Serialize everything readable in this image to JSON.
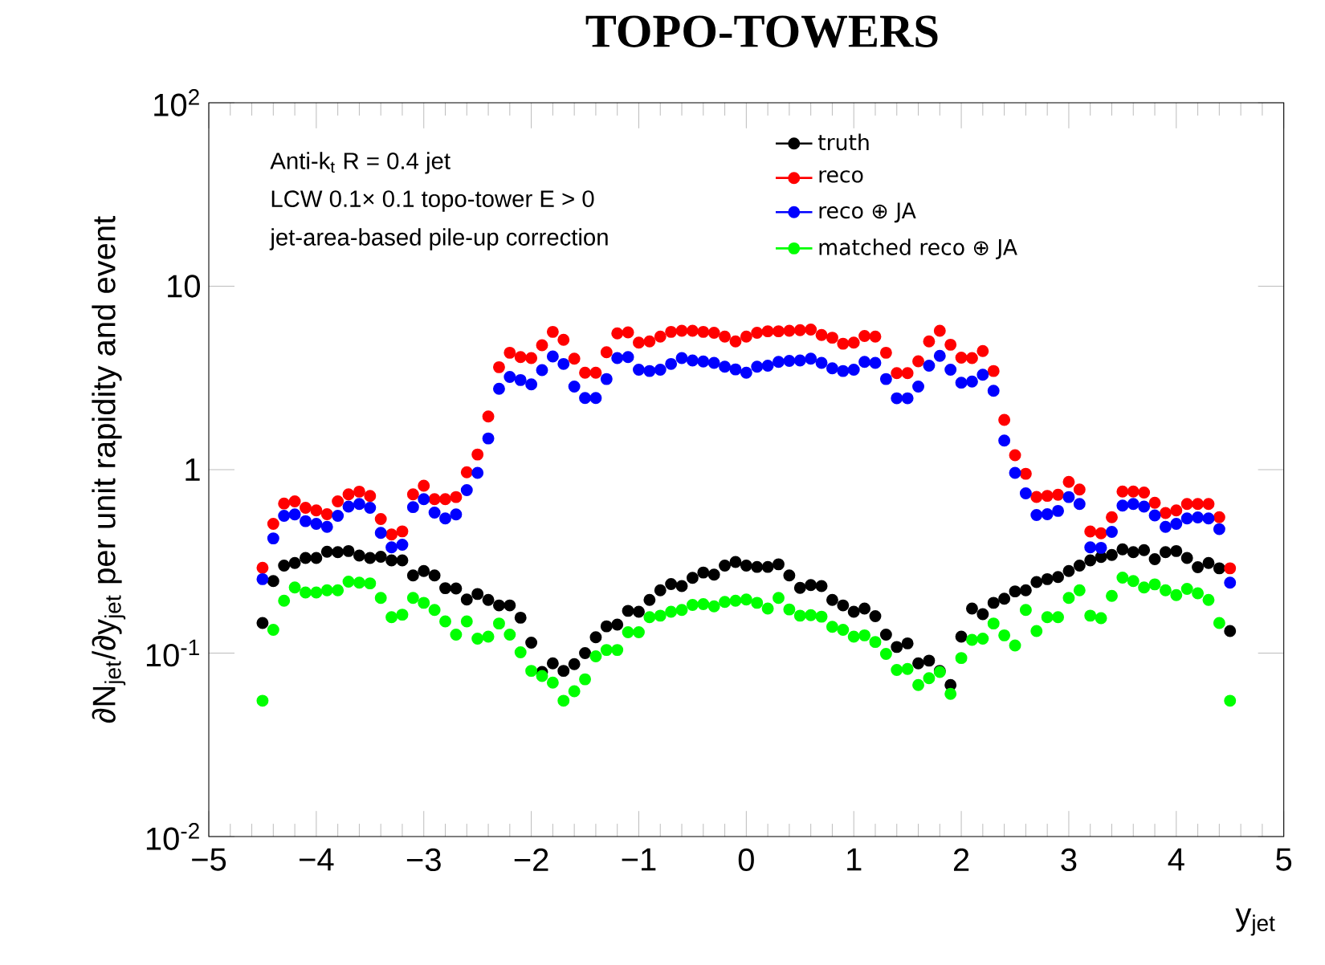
{
  "chart_data": {
    "type": "scatter",
    "title": "TOPO-TOWERS",
    "xlabel": "y$_{jet}$",
    "ylabel": "∂N$_{jet}$/∂y$_{jet}$ per unit rapidity and event",
    "annotations": [
      "Anti-k$_{t}$ R = 0.4 jet",
      "LCW 0.1× 0.1 topo-tower E > 0",
      "jet-area-based pile-up correction"
    ],
    "log": "y",
    "marker": "circle",
    "legend": "top right",
    "xlim": [
      -5,
      5
    ],
    "ylim": [
      0.01,
      100
    ],
    "xticks": [
      {
        "value": -5,
        "label": "−5"
      },
      {
        "value": -4,
        "label": "−4"
      },
      {
        "value": -3,
        "label": "−3"
      },
      {
        "value": -2,
        "label": "−2"
      },
      {
        "value": -1,
        "label": "−1"
      },
      0,
      1,
      2,
      3,
      4,
      5
    ],
    "yticks": [
      {
        "value": 0.01,
        "label": "10$^{-2}$"
      },
      {
        "value": 0.1,
        "label": "10$^{-1}$"
      },
      1,
      10,
      {
        "value": 100,
        "label": "10$^{2}$"
      }
    ],
    "x": [
      -4.5,
      -4.4,
      -4.3,
      -4.2,
      -4.1,
      -4.0,
      -3.9,
      -3.8,
      -3.7,
      -3.6,
      -3.5,
      -3.4,
      -3.3,
      -3.2,
      -3.1,
      -3.0,
      -2.9,
      -2.8,
      -2.7,
      -2.6,
      -2.5,
      -2.4,
      -2.3,
      -2.2,
      -2.1,
      -2.0,
      -1.9,
      -1.8,
      -1.7,
      -1.6,
      -1.5,
      -1.4,
      -1.3,
      -1.2,
      -1.1,
      -1.0,
      -0.9,
      -0.8,
      -0.7,
      -0.6,
      -0.5,
      -0.4,
      -0.3,
      -0.2,
      -0.1,
      0.0,
      0.1,
      0.2,
      0.3,
      0.4,
      0.5,
      0.6,
      0.7,
      0.8,
      0.9,
      1.0,
      1.1,
      1.2,
      1.3,
      1.4,
      1.5,
      1.6,
      1.7,
      1.8,
      1.9,
      2.0,
      2.1,
      2.2,
      2.3,
      2.4,
      2.5,
      2.6,
      2.7,
      2.8,
      2.9,
      3.0,
      3.1,
      3.2,
      3.3,
      3.4,
      3.5,
      3.6,
      3.7,
      3.8,
      3.9,
      4.0,
      4.1,
      4.2,
      4.3,
      4.4,
      4.5
    ],
    "series": [
      {
        "name": "truth",
        "color": "#000000",
        "values": [
          0.146,
          0.247,
          0.3,
          0.31,
          0.33,
          0.33,
          0.357,
          0.355,
          0.36,
          0.34,
          0.33,
          0.335,
          0.32,
          0.32,
          0.265,
          0.28,
          0.265,
          0.226,
          0.225,
          0.196,
          0.21,
          0.195,
          0.182,
          0.182,
          0.156,
          0.114,
          0.079,
          0.088,
          0.08,
          0.087,
          0.1,
          0.122,
          0.14,
          0.143,
          0.17,
          0.168,
          0.195,
          0.22,
          0.238,
          0.232,
          0.257,
          0.275,
          0.268,
          0.3,
          0.314,
          0.3,
          0.295,
          0.295,
          0.305,
          0.265,
          0.227,
          0.235,
          0.232,
          0.195,
          0.182,
          0.168,
          0.175,
          0.159,
          0.126,
          0.108,
          0.113,
          0.088,
          0.091,
          0.08,
          0.067,
          0.123,
          0.175,
          0.163,
          0.188,
          0.198,
          0.217,
          0.22,
          0.244,
          0.253,
          0.26,
          0.28,
          0.3,
          0.32,
          0.334,
          0.343,
          0.368,
          0.355,
          0.364,
          0.325,
          0.355,
          0.36,
          0.33,
          0.294,
          0.31,
          0.29,
          0.132
        ]
      },
      {
        "name": "reco",
        "color": "#ff0000",
        "values": [
          0.292,
          0.507,
          0.654,
          0.672,
          0.62,
          0.6,
          0.572,
          0.672,
          0.734,
          0.759,
          0.719,
          0.538,
          0.443,
          0.461,
          0.734,
          0.817,
          0.69,
          0.69,
          0.709,
          0.967,
          1.21,
          1.95,
          3.62,
          4.34,
          4.11,
          4.06,
          4.77,
          5.64,
          5.1,
          4.03,
          3.38,
          3.38,
          4.37,
          5.53,
          5.6,
          4.93,
          5.0,
          5.31,
          5.64,
          5.72,
          5.72,
          5.64,
          5.57,
          5.31,
          5.0,
          5.31,
          5.57,
          5.68,
          5.68,
          5.72,
          5.76,
          5.8,
          5.42,
          5.24,
          4.86,
          4.93,
          5.35,
          5.31,
          4.34,
          3.36,
          3.36,
          3.9,
          5.0,
          5.72,
          4.8,
          4.08,
          4.06,
          4.43,
          3.45,
          1.87,
          1.2,
          0.95,
          0.71,
          0.72,
          0.73,
          0.857,
          0.78,
          0.46,
          0.45,
          0.55,
          0.76,
          0.76,
          0.75,
          0.66,
          0.58,
          0.6,
          0.65,
          0.65,
          0.65,
          0.55,
          0.29
        ]
      },
      {
        "name": "reco ⊕ JA",
        "color": "#0000ff",
        "values": [
          0.253,
          0.422,
          0.56,
          0.57,
          0.524,
          0.507,
          0.488,
          0.56,
          0.629,
          0.65,
          0.62,
          0.452,
          0.377,
          0.39,
          0.625,
          0.69,
          0.583,
          0.542,
          0.57,
          0.774,
          0.96,
          1.48,
          2.76,
          3.2,
          3.08,
          2.92,
          3.49,
          4.14,
          3.77,
          2.84,
          2.46,
          2.46,
          3.12,
          4.06,
          4.11,
          3.51,
          3.45,
          3.51,
          3.77,
          4.06,
          3.94,
          3.89,
          3.82,
          3.64,
          3.52,
          3.38,
          3.64,
          3.69,
          3.87,
          3.92,
          3.94,
          4.03,
          3.82,
          3.57,
          3.45,
          3.51,
          3.87,
          3.82,
          3.12,
          2.45,
          2.45,
          2.84,
          3.69,
          4.17,
          3.51,
          2.98,
          3.02,
          3.29,
          2.69,
          1.44,
          0.96,
          0.743,
          0.566,
          0.572,
          0.596,
          0.709,
          0.65,
          0.377,
          0.375,
          0.458,
          0.637,
          0.65,
          0.629,
          0.563,
          0.488,
          0.507,
          0.542,
          0.549,
          0.542,
          0.474,
          0.242
        ]
      },
      {
        "name": "matched reco ⊕ JA",
        "color": "#00ff00",
        "values": [
          0.055,
          0.134,
          0.193,
          0.228,
          0.214,
          0.214,
          0.22,
          0.22,
          0.245,
          0.242,
          0.24,
          0.2,
          0.157,
          0.162,
          0.2,
          0.188,
          0.172,
          0.149,
          0.126,
          0.149,
          0.12,
          0.123,
          0.145,
          0.126,
          0.101,
          0.08,
          0.075,
          0.069,
          0.055,
          0.062,
          0.072,
          0.096,
          0.104,
          0.104,
          0.13,
          0.13,
          0.157,
          0.16,
          0.168,
          0.172,
          0.183,
          0.185,
          0.18,
          0.19,
          0.193,
          0.196,
          0.188,
          0.175,
          0.2,
          0.173,
          0.16,
          0.161,
          0.158,
          0.139,
          0.134,
          0.123,
          0.125,
          0.115,
          0.099,
          0.081,
          0.082,
          0.067,
          0.073,
          0.079,
          0.06,
          0.094,
          0.118,
          0.12,
          0.145,
          0.125,
          0.11,
          0.172,
          0.132,
          0.157,
          0.157,
          0.2,
          0.22,
          0.16,
          0.155,
          0.205,
          0.258,
          0.247,
          0.228,
          0.237,
          0.22,
          0.207,
          0.224,
          0.212,
          0.195,
          0.146,
          0.055
        ]
      }
    ]
  }
}
